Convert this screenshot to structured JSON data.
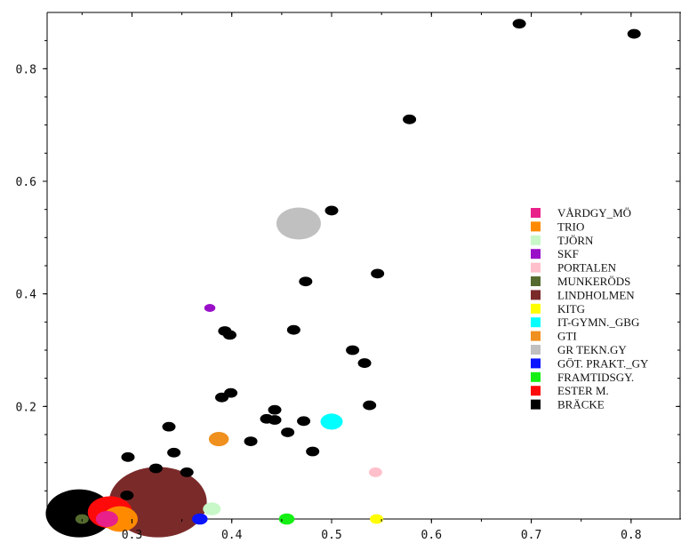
{
  "chart_data": {
    "type": "scatter",
    "title": "",
    "xlabel": "",
    "ylabel": "",
    "xlim": [
      0.215,
      0.85
    ],
    "ylim": [
      0.0,
      0.9
    ],
    "x_ticks": [
      "0.3",
      "0.4",
      "0.5",
      "0.6",
      "0.7",
      "0.8"
    ],
    "y_ticks": [
      "0.2",
      "0.4",
      "0.6",
      "0.8"
    ],
    "legend_position": "right",
    "grid": false,
    "series": [
      {
        "name": "VÅRDGY_MÖ",
        "color": "#e8208a",
        "points": [
          {
            "x": 0.275,
            "y": 0.0,
            "r": 10
          }
        ]
      },
      {
        "name": "TRIO",
        "color": "#ff8a00",
        "points": [
          {
            "x": 0.288,
            "y": 0.0,
            "r": 16
          }
        ]
      },
      {
        "name": "TJÖRN",
        "color": "#c8f7c8",
        "points": [
          {
            "x": 0.38,
            "y": 0.018,
            "r": 8
          }
        ]
      },
      {
        "name": "SKF",
        "color": "#9a10c8",
        "points": [
          {
            "x": 0.378,
            "y": 0.375,
            "r": 5
          }
        ]
      },
      {
        "name": "PORTALEN",
        "color": "#ffc0cb",
        "points": [
          {
            "x": 0.544,
            "y": 0.083,
            "r": 6
          }
        ]
      },
      {
        "name": "MUNKERÖDS",
        "color": "#556b2f",
        "points": [
          {
            "x": 0.25,
            "y": 0.0,
            "r": 6
          }
        ]
      },
      {
        "name": "LINDHOLMEN",
        "color": "#7b2a2a",
        "points": [
          {
            "x": 0.326,
            "y": 0.03,
            "r": 44
          }
        ]
      },
      {
        "name": "KITG",
        "color": "#ffff00",
        "points": [
          {
            "x": 0.545,
            "y": 0.0,
            "r": 6
          }
        ]
      },
      {
        "name": "IT-GYMN._GBG",
        "color": "#00ffff",
        "points": [
          {
            "x": 0.5,
            "y": 0.173,
            "r": 10
          }
        ]
      },
      {
        "name": "GTI",
        "color": "#f0901e",
        "points": [
          {
            "x": 0.387,
            "y": 0.142,
            "r": 9
          }
        ]
      },
      {
        "name": "GR TEKN.GY",
        "color": "#c0c0c0",
        "points": [
          {
            "x": 0.467,
            "y": 0.525,
            "r": 20
          }
        ]
      },
      {
        "name": "GÖT. PRAKT._GY",
        "color": "#0a14ff",
        "points": [
          {
            "x": 0.368,
            "y": 0.0,
            "r": 7
          }
        ]
      },
      {
        "name": "FRAMTIDSGY.",
        "color": "#14f014",
        "points": [
          {
            "x": 0.455,
            "y": 0.0,
            "r": 7
          }
        ]
      },
      {
        "name": "ESTER M.",
        "color": "#ff0a0a",
        "points": [
          {
            "x": 0.278,
            "y": 0.012,
            "r": 20
          }
        ]
      },
      {
        "name": "BRÄCKE",
        "color": "#000000",
        "points": [
          {
            "x": 0.247,
            "y": 0.01,
            "r": 30
          },
          {
            "x": 0.688,
            "y": 0.88,
            "r": 6
          },
          {
            "x": 0.803,
            "y": 0.862,
            "r": 6
          },
          {
            "x": 0.578,
            "y": 0.71,
            "r": 6
          },
          {
            "x": 0.5,
            "y": 0.548,
            "r": 6
          },
          {
            "x": 0.546,
            "y": 0.436,
            "r": 6
          },
          {
            "x": 0.474,
            "y": 0.422,
            "r": 6
          },
          {
            "x": 0.462,
            "y": 0.336,
            "r": 6
          },
          {
            "x": 0.393,
            "y": 0.334,
            "r": 6
          },
          {
            "x": 0.398,
            "y": 0.327,
            "r": 6
          },
          {
            "x": 0.521,
            "y": 0.3,
            "r": 6
          },
          {
            "x": 0.533,
            "y": 0.277,
            "r": 6
          },
          {
            "x": 0.399,
            "y": 0.224,
            "r": 6
          },
          {
            "x": 0.39,
            "y": 0.216,
            "r": 6
          },
          {
            "x": 0.538,
            "y": 0.202,
            "r": 6
          },
          {
            "x": 0.443,
            "y": 0.194,
            "r": 6
          },
          {
            "x": 0.435,
            "y": 0.178,
            "r": 6
          },
          {
            "x": 0.443,
            "y": 0.176,
            "r": 6
          },
          {
            "x": 0.472,
            "y": 0.174,
            "r": 6
          },
          {
            "x": 0.337,
            "y": 0.164,
            "r": 6
          },
          {
            "x": 0.456,
            "y": 0.154,
            "r": 6
          },
          {
            "x": 0.419,
            "y": 0.138,
            "r": 6
          },
          {
            "x": 0.481,
            "y": 0.12,
            "r": 6
          },
          {
            "x": 0.342,
            "y": 0.118,
            "r": 6
          },
          {
            "x": 0.296,
            "y": 0.11,
            "r": 6
          },
          {
            "x": 0.324,
            "y": 0.09,
            "r": 6
          },
          {
            "x": 0.355,
            "y": 0.083,
            "r": 6
          },
          {
            "x": 0.295,
            "y": 0.042,
            "r": 6
          }
        ]
      }
    ]
  }
}
